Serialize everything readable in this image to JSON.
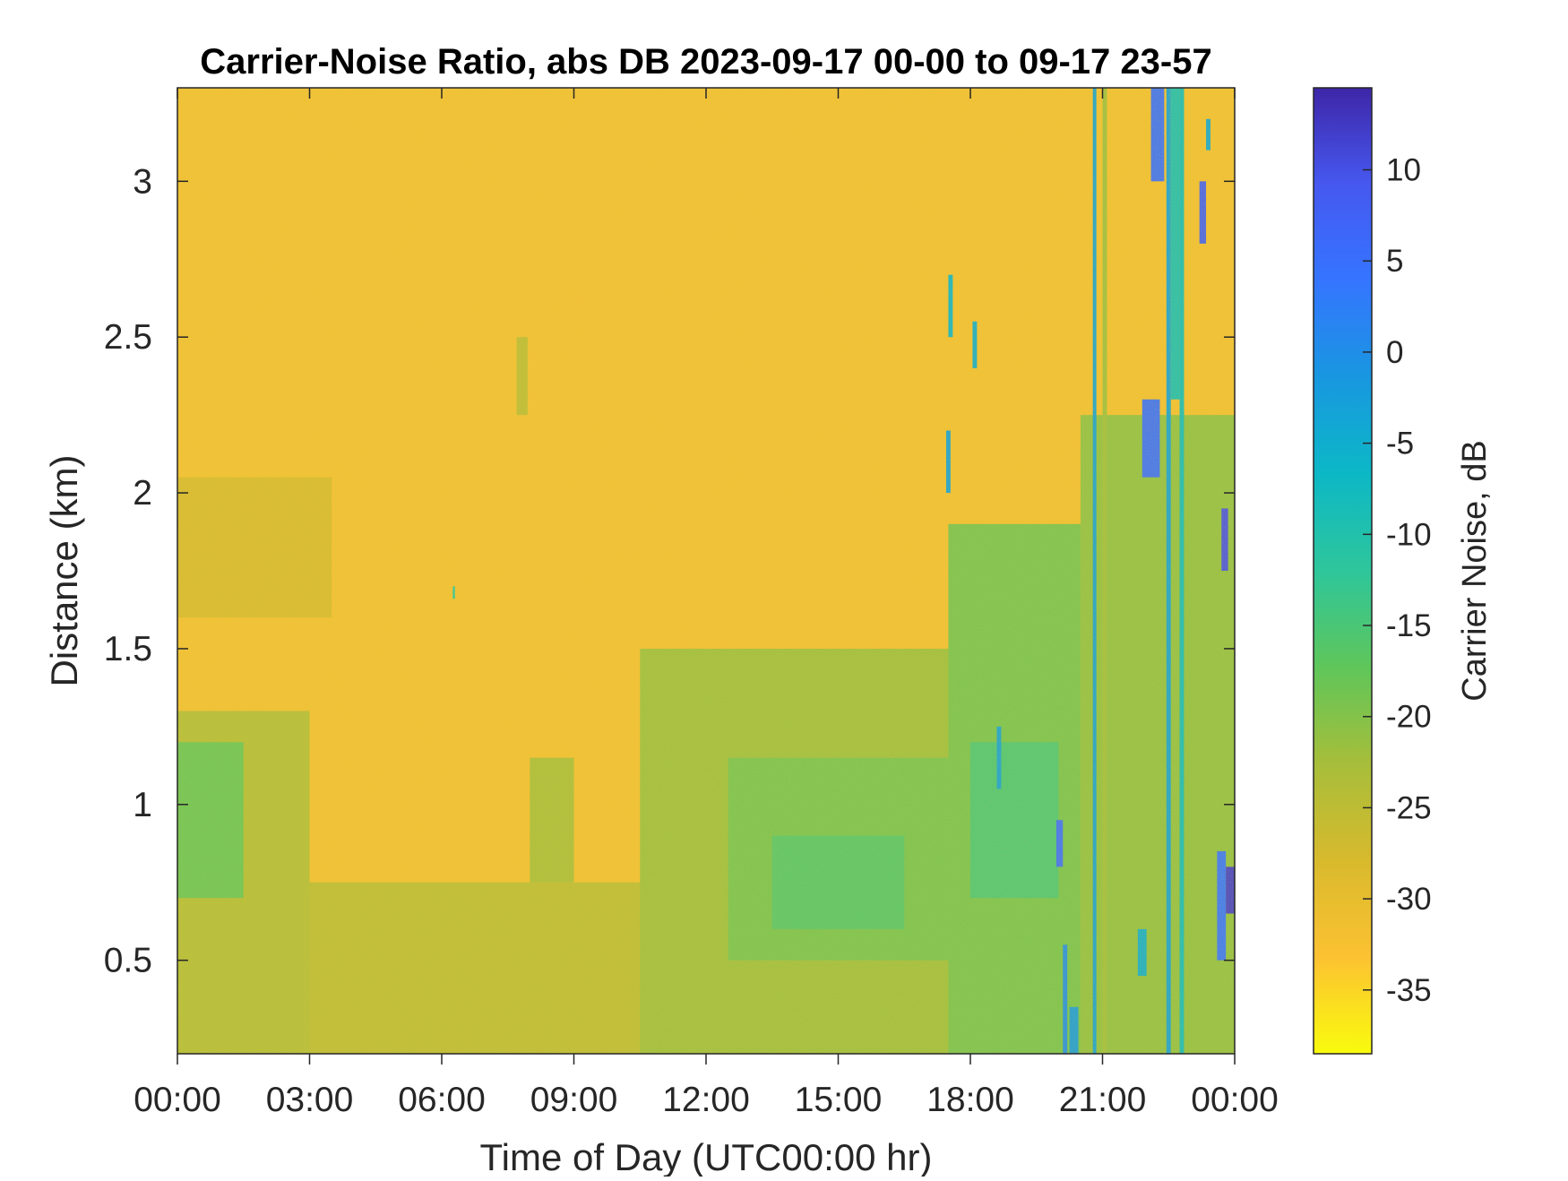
{
  "chart_data": {
    "type": "heatmap",
    "title": "Carrier-Noise Ratio, abs DB 2023-09-17 00-00 to 09-17 23-57",
    "xlabel": "Time of Day (UTC00:00 hr)",
    "ylabel": "Distance (km)",
    "x_ticks": [
      {
        "value": 0,
        "label": "00:00"
      },
      {
        "value": 3,
        "label": "03:00"
      },
      {
        "value": 6,
        "label": "06:00"
      },
      {
        "value": 9,
        "label": "09:00"
      },
      {
        "value": 12,
        "label": "12:00"
      },
      {
        "value": 15,
        "label": "15:00"
      },
      {
        "value": 18,
        "label": "18:00"
      },
      {
        "value": 21,
        "label": "21:00"
      },
      {
        "value": 24,
        "label": "00:00"
      }
    ],
    "xlim": [
      0,
      24
    ],
    "y_ticks": [
      {
        "value": 0.5,
        "label": "0.5"
      },
      {
        "value": 1,
        "label": "1"
      },
      {
        "value": 1.5,
        "label": "1.5"
      },
      {
        "value": 2,
        "label": "2"
      },
      {
        "value": 2.5,
        "label": "2.5"
      },
      {
        "value": 3,
        "label": "3"
      }
    ],
    "ylim": [
      0.2,
      3.3
    ],
    "colorbar": {
      "label": "Carrier Noise, dB",
      "range": [
        -38.5,
        14.5
      ],
      "ticks": [
        {
          "value": 10,
          "label": "10"
        },
        {
          "value": 5,
          "label": "5"
        },
        {
          "value": 0,
          "label": "0"
        },
        {
          "value": -5,
          "label": "-5"
        },
        {
          "value": -10,
          "label": "-10"
        },
        {
          "value": -15,
          "label": "-15"
        },
        {
          "value": -20,
          "label": "-20"
        },
        {
          "value": -25,
          "label": "-25"
        },
        {
          "value": -30,
          "label": "-30"
        },
        {
          "value": -35,
          "label": "-35"
        }
      ],
      "colormap": [
        "#f9fb0e",
        "#fcc232",
        "#d8ba2d",
        "#a7be3a",
        "#5fc65a",
        "#2ec69b",
        "#0cb8c6",
        "#1897e0",
        "#3575ff",
        "#4658f0",
        "#3e26a8"
      ]
    },
    "background_level": -32,
    "cells": [
      {
        "x0": 0,
        "x1": 3,
        "y0": 0.2,
        "y1": 1.3,
        "value": -24
      },
      {
        "x0": 0,
        "x1": 1.5,
        "y0": 0.7,
        "y1": 1.2,
        "value": -18
      },
      {
        "x0": 0,
        "x1": 3.5,
        "y0": 1.6,
        "y1": 2.05,
        "value": -28
      },
      {
        "x0": 3,
        "x1": 12,
        "y0": 0.2,
        "y1": 0.75,
        "value": -25
      },
      {
        "x0": 8,
        "x1": 9,
        "y0": 0.75,
        "y1": 1.15,
        "value": -23
      },
      {
        "x0": 10.5,
        "x1": 17.5,
        "y0": 0.2,
        "y1": 1.5,
        "value": -22
      },
      {
        "x0": 12.5,
        "x1": 17.5,
        "y0": 0.5,
        "y1": 1.15,
        "value": -19
      },
      {
        "x0": 13.5,
        "x1": 16.5,
        "y0": 0.6,
        "y1": 0.9,
        "value": -16
      },
      {
        "x0": 17.5,
        "x1": 20.5,
        "y0": 0.2,
        "y1": 1.9,
        "value": -19
      },
      {
        "x0": 18,
        "x1": 20,
        "y0": 0.7,
        "y1": 1.2,
        "value": -15
      },
      {
        "x0": 20.5,
        "x1": 24,
        "y0": 0.2,
        "y1": 2.25,
        "value": -21
      },
      {
        "x0": 7.7,
        "x1": 7.95,
        "y0": 2.25,
        "y1": 2.5,
        "value": -25
      },
      {
        "x0": 6.25,
        "x1": 6.3,
        "y0": 1.66,
        "y1": 1.7,
        "value": -12
      },
      {
        "x0": 20.78,
        "x1": 20.86,
        "y0": 0.2,
        "y1": 3.3,
        "value": -3
      },
      {
        "x0": 22.45,
        "x1": 22.55,
        "y0": 0.2,
        "y1": 3.3,
        "value": -3
      },
      {
        "x0": 22.75,
        "x1": 22.85,
        "y0": 0.2,
        "y1": 3.3,
        "value": -8
      },
      {
        "x0": 22.55,
        "x1": 22.75,
        "y0": 2.3,
        "y1": 3.3,
        "value": -9
      },
      {
        "x0": 21.0,
        "x1": 21.1,
        "y0": 0.2,
        "y1": 3.3,
        "value": -22
      },
      {
        "x0": 20.1,
        "x1": 20.2,
        "y0": 0.2,
        "y1": 0.55,
        "value": 0
      },
      {
        "x0": 20.25,
        "x1": 20.45,
        "y0": 0.2,
        "y1": 0.35,
        "value": -2
      },
      {
        "x0": 21.8,
        "x1": 22.0,
        "y0": 0.45,
        "y1": 0.6,
        "value": -5
      },
      {
        "x0": 21.9,
        "x1": 22.3,
        "y0": 2.05,
        "y1": 2.3,
        "value": 5
      },
      {
        "x0": 22.1,
        "x1": 22.4,
        "y0": 3.0,
        "y1": 3.3,
        "value": 5
      },
      {
        "x0": 23.2,
        "x1": 23.35,
        "y0": 2.8,
        "y1": 3.0,
        "value": 8
      },
      {
        "x0": 23.6,
        "x1": 23.8,
        "y0": 0.5,
        "y1": 0.85,
        "value": 4
      },
      {
        "x0": 23.8,
        "x1": 24.0,
        "y0": 0.65,
        "y1": 0.8,
        "value": 12
      },
      {
        "x0": 23.7,
        "x1": 23.85,
        "y0": 1.75,
        "y1": 1.95,
        "value": 10
      },
      {
        "x0": 19.95,
        "x1": 20.1,
        "y0": 0.8,
        "y1": 0.95,
        "value": 5
      },
      {
        "x0": 17.45,
        "x1": 17.55,
        "y0": 2.0,
        "y1": 2.2,
        "value": -3
      },
      {
        "x0": 17.5,
        "x1": 17.6,
        "y0": 2.5,
        "y1": 2.7,
        "value": -6
      },
      {
        "x0": 18.05,
        "x1": 18.15,
        "y0": 2.4,
        "y1": 2.55,
        "value": -5
      },
      {
        "x0": 18.6,
        "x1": 18.7,
        "y0": 1.05,
        "y1": 1.25,
        "value": -3
      },
      {
        "x0": 23.35,
        "x1": 23.45,
        "y0": 3.1,
        "y1": 3.2,
        "value": -4
      }
    ]
  }
}
